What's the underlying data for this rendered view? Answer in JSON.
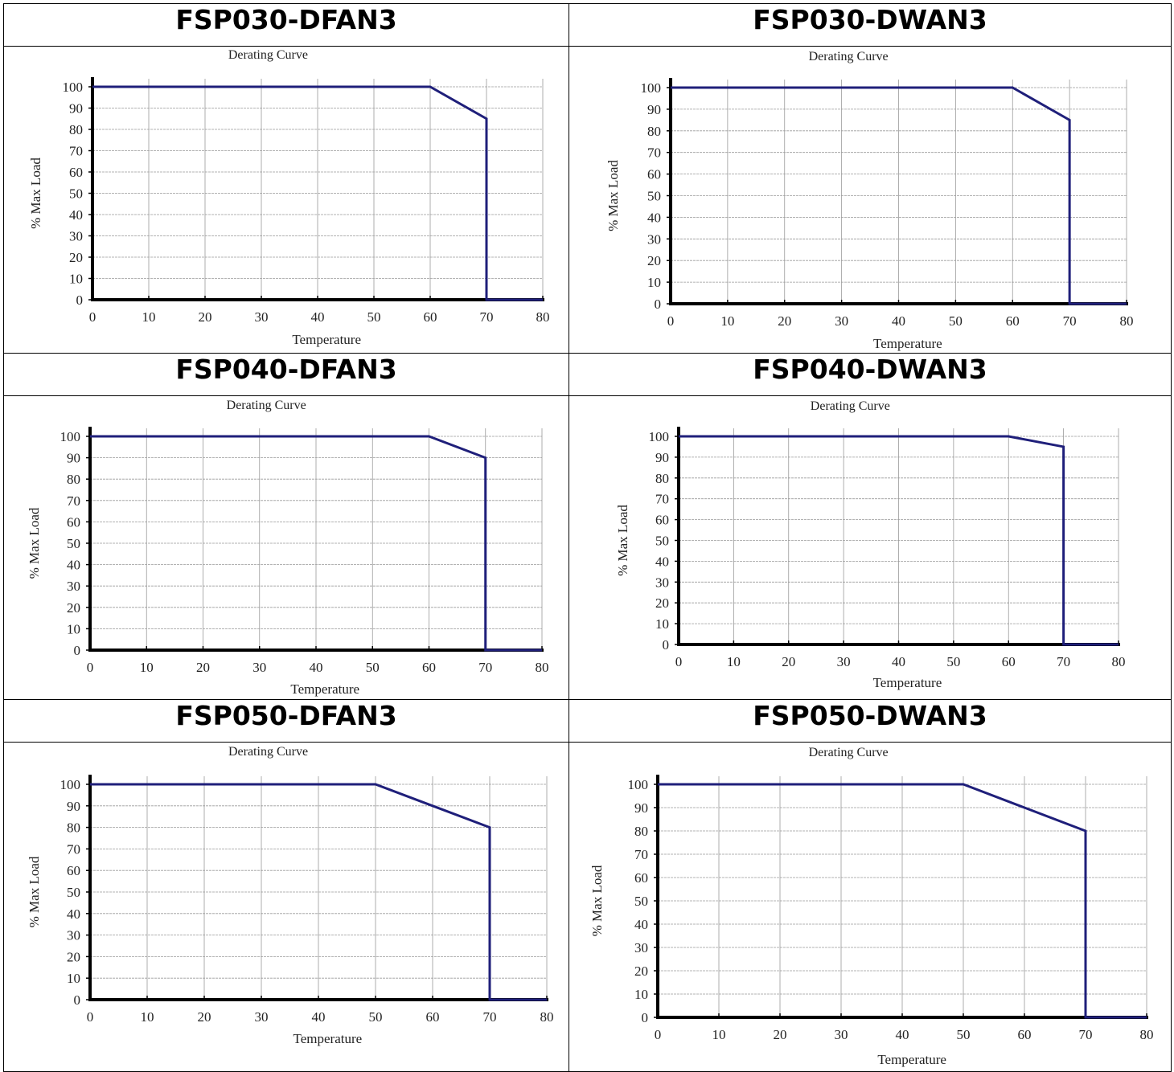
{
  "panels": [
    {
      "title": "FSP030-DFAN3"
    },
    {
      "title": "FSP030-DWAN3"
    },
    {
      "title": "FSP040-DFAN3"
    },
    {
      "title": "FSP040-DWAN3"
    },
    {
      "title": "FSP050-DFAN3"
    },
    {
      "title": "FSP050-DWAN3"
    }
  ],
  "colors": {
    "curve": "#1f1f7a",
    "axis": "#000000",
    "grid": "#9a9a9a"
  },
  "chart_data": [
    {
      "type": "line",
      "title": "Derating Curve",
      "xlabel": "Temperature",
      "ylabel": "% Max Load",
      "xlim": [
        0,
        80
      ],
      "ylim": [
        0,
        100
      ],
      "xticks": [
        0,
        10,
        20,
        30,
        40,
        50,
        60,
        70,
        80
      ],
      "yticks": [
        0,
        10,
        20,
        30,
        40,
        50,
        60,
        70,
        80,
        90,
        100
      ],
      "grid": true,
      "x": [
        0,
        60,
        70,
        70,
        80
      ],
      "y": [
        100,
        100,
        85,
        0,
        0
      ]
    },
    {
      "type": "line",
      "title": "Derating Curve",
      "xlabel": "Temperature",
      "ylabel": "% Max Load",
      "xlim": [
        0,
        80
      ],
      "ylim": [
        0,
        100
      ],
      "xticks": [
        0,
        10,
        20,
        30,
        40,
        50,
        60,
        70,
        80
      ],
      "yticks": [
        0,
        10,
        20,
        30,
        40,
        50,
        60,
        70,
        80,
        90,
        100
      ],
      "grid": true,
      "x": [
        0,
        60,
        70,
        70,
        80
      ],
      "y": [
        100,
        100,
        85,
        0,
        0
      ]
    },
    {
      "type": "line",
      "title": "Derating Curve",
      "xlabel": "Temperature",
      "ylabel": "% Max Load",
      "xlim": [
        0,
        80
      ],
      "ylim": [
        0,
        100
      ],
      "xticks": [
        0,
        10,
        20,
        30,
        40,
        50,
        60,
        70,
        80
      ],
      "yticks": [
        0,
        10,
        20,
        30,
        40,
        50,
        60,
        70,
        80,
        90,
        100
      ],
      "grid": true,
      "x": [
        0,
        60,
        70,
        70,
        80
      ],
      "y": [
        100,
        100,
        90,
        0,
        0
      ]
    },
    {
      "type": "line",
      "title": "Derating Curve",
      "xlabel": "Temperature",
      "ylabel": "% Max Load",
      "xlim": [
        0,
        80
      ],
      "ylim": [
        0,
        100
      ],
      "xticks": [
        0,
        10,
        20,
        30,
        40,
        50,
        60,
        70,
        80
      ],
      "yticks": [
        0,
        10,
        20,
        30,
        40,
        50,
        60,
        70,
        80,
        90,
        100
      ],
      "grid": true,
      "x": [
        0,
        60,
        70,
        70,
        80
      ],
      "y": [
        100,
        100,
        95,
        0,
        0
      ]
    },
    {
      "type": "line",
      "title": "Derating Curve",
      "xlabel": "Temperature",
      "ylabel": "% Max Load",
      "xlim": [
        0,
        80
      ],
      "ylim": [
        0,
        100
      ],
      "xticks": [
        0,
        10,
        20,
        30,
        40,
        50,
        60,
        70,
        80
      ],
      "yticks": [
        0,
        10,
        20,
        30,
        40,
        50,
        60,
        70,
        80,
        90,
        100
      ],
      "grid": true,
      "x": [
        0,
        50,
        60,
        70,
        70,
        80
      ],
      "y": [
        100,
        100,
        90,
        80,
        0,
        0
      ]
    },
    {
      "type": "line",
      "title": "Derating Curve",
      "xlabel": "Temperature",
      "ylabel": "% Max Load",
      "xlim": [
        0,
        80
      ],
      "ylim": [
        0,
        100
      ],
      "xticks": [
        0,
        10,
        20,
        30,
        40,
        50,
        60,
        70,
        80
      ],
      "yticks": [
        0,
        10,
        20,
        30,
        40,
        50,
        60,
        70,
        80,
        90,
        100
      ],
      "grid": true,
      "x": [
        0,
        50,
        60,
        70,
        70,
        80
      ],
      "y": [
        100,
        100,
        90,
        80,
        0,
        0
      ]
    }
  ]
}
